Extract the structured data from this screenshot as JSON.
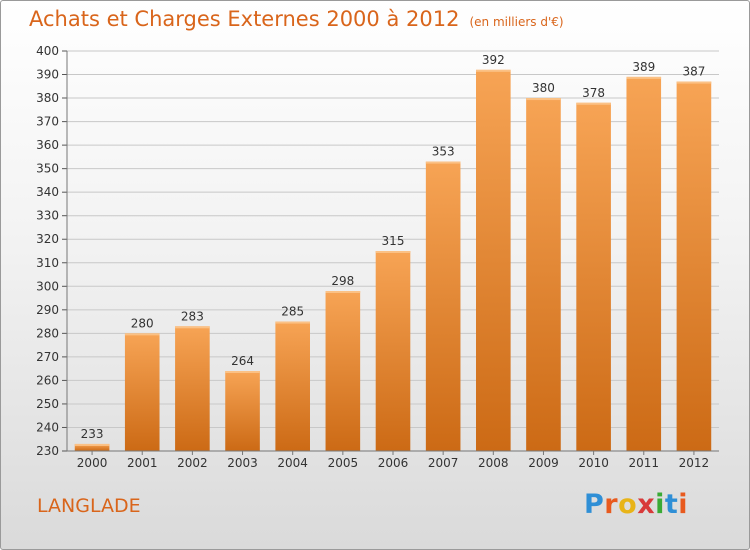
{
  "title": "Achats et Charges Externes 2000 à 2012",
  "unit": "(en milliers d'€)",
  "commune": "LANGLADE",
  "brand": "Proxiti",
  "colors": {
    "title": "#d9651b",
    "bar_light": "#f7a455",
    "bar_dark": "#cc6a15",
    "grid": "#c8c8c8",
    "brand_letters": [
      "#2f8fd6",
      "#e85a1e",
      "#e8b418",
      "#d83a3a",
      "#3aaa35",
      "#2f8fd6",
      "#e85a1e"
    ]
  },
  "chart_data": {
    "type": "bar",
    "categories": [
      "2000",
      "2001",
      "2002",
      "2003",
      "2004",
      "2005",
      "2006",
      "2007",
      "2008",
      "2009",
      "2010",
      "2011",
      "2012"
    ],
    "values": [
      233,
      280,
      283,
      264,
      285,
      298,
      315,
      353,
      392,
      380,
      378,
      389,
      387
    ],
    "ylim": [
      230,
      400
    ],
    "yticks": [
      230,
      240,
      250,
      260,
      270,
      280,
      290,
      300,
      310,
      320,
      330,
      340,
      350,
      360,
      370,
      380,
      390,
      400
    ],
    "grid": true
  }
}
